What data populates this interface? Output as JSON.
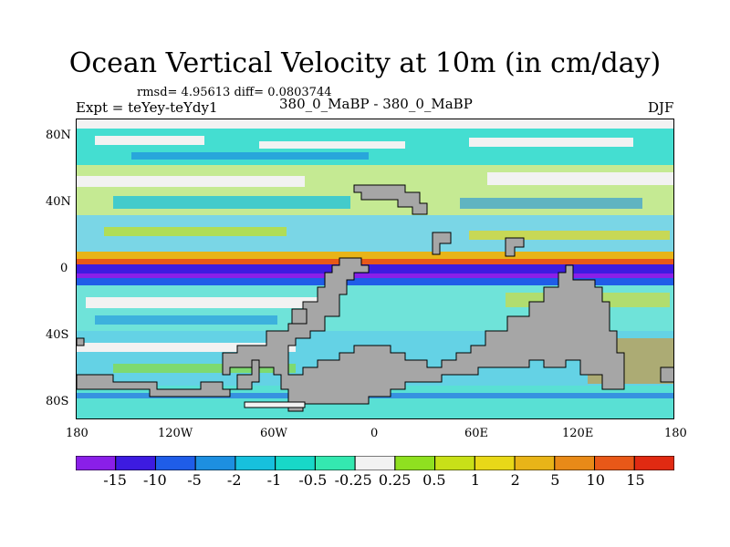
{
  "title": "Ocean Vertical Velocity at 10m (in cm/day)",
  "stats": "rmsd= 4.95613 diff= 0.0803744",
  "expt": "Expt = teYey-teYdy1",
  "case_label": "380_0_MaBP - 380_0_MaBP",
  "season": "DJF",
  "y_ticks": [
    "80N",
    "40N",
    "0",
    "40S",
    "80S"
  ],
  "x_ticks": [
    "180",
    "120W",
    "60W",
    "0",
    "60E",
    "120E",
    "180"
  ],
  "colorbar": {
    "colors": [
      "#8a1fe8",
      "#3d1be0",
      "#1f5de8",
      "#1d8fe0",
      "#17c0dd",
      "#18d8c8",
      "#34e8b0",
      "#f2f2f2",
      "#8fe020",
      "#c8e018",
      "#e8d818",
      "#e8b418",
      "#e88a18",
      "#e85818",
      "#e02a12"
    ],
    "labels": [
      "-15",
      "-10",
      "-5",
      "-2",
      "-1",
      "-0.5",
      "-0.25",
      "0.25",
      "0.5",
      "1",
      "2",
      "5",
      "10",
      "15"
    ]
  },
  "colors": {
    "land": "#a6a6a6",
    "ice": "#f2f2f2"
  }
}
